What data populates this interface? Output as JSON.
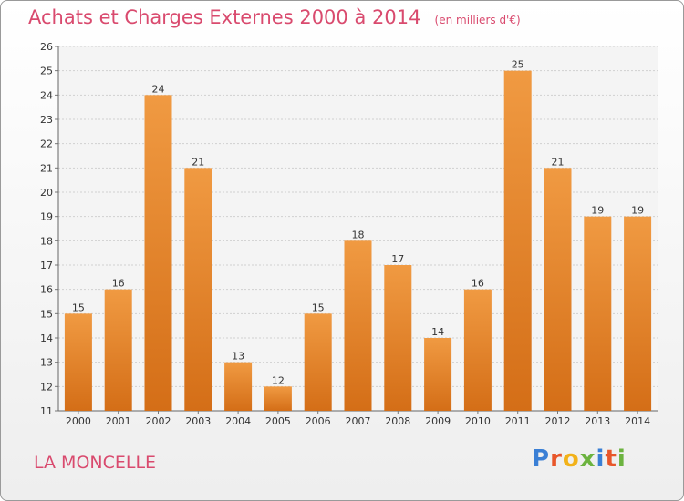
{
  "title": "Achats et Charges Externes 2000 à 2014",
  "subtitle": "(en milliers d'€)",
  "location": "LA MONCELLE",
  "logo": {
    "text": "Proxiti"
  },
  "colors": {
    "bar": "#f09a42",
    "bar_dark": "#d46e17",
    "title": "#d94a6e"
  },
  "chart_data": {
    "type": "bar",
    "title": "Achats et Charges Externes 2000 à 2014",
    "subtitle": "(en milliers d'€)",
    "xlabel": "",
    "ylabel": "",
    "categories": [
      "2000",
      "2001",
      "2002",
      "2003",
      "2004",
      "2005",
      "2006",
      "2007",
      "2008",
      "2009",
      "2010",
      "2011",
      "2012",
      "2013",
      "2014"
    ],
    "values": [
      15,
      16,
      24,
      21,
      13,
      12,
      15,
      18,
      17,
      14,
      16,
      25,
      21,
      19,
      19
    ],
    "ylim": [
      11,
      26
    ],
    "yticks": [
      11,
      12,
      13,
      14,
      15,
      16,
      17,
      18,
      19,
      20,
      21,
      22,
      23,
      24,
      25,
      26
    ],
    "grid": true,
    "legend": "none"
  }
}
